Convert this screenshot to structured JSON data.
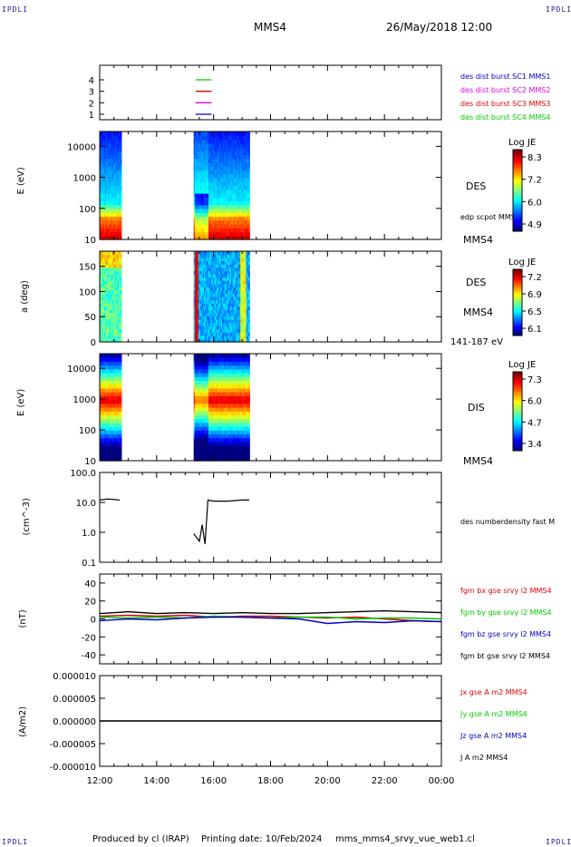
{
  "header": {
    "corner_label": "IPDLI",
    "spacecraft": "MMS4",
    "datetime": "26/May/2018 12:00"
  },
  "footer": {
    "produced_by": "Produced by cl (IRAP)",
    "printing_date": "Printing date: 10/Feb/2024",
    "filename": "mms_mms4_srvy_vue_web1.cl"
  },
  "time_axis": {
    "ticks": [
      "12:00",
      "14:00",
      "16:00",
      "18:00",
      "20:00",
      "22:00",
      "00:00"
    ],
    "start_hour": 12,
    "end_hour": 24
  },
  "colors": {
    "frame": "#000000",
    "blue_text": "#0000c8",
    "magenta_text": "#e000e0",
    "red_text": "#e00000",
    "green_text": "#00cc00"
  },
  "chart_data": [
    {
      "type": "scatter",
      "panel": "burst_availability",
      "yticks": [
        "4",
        "3",
        "2",
        "1"
      ],
      "legend": [
        {
          "label": "des dist burst SC1 MMS1",
          "color": "#0000c8"
        },
        {
          "label": "des dist burst SC2 MMS2",
          "color": "#e000e0"
        },
        {
          "label": "des dist burst SC3 MMS3",
          "color": "#e00000"
        },
        {
          "label": "des dist burst SC4 MMS4",
          "color": "#00cc00"
        }
      ],
      "marks": [
        {
          "level": 4,
          "t_start": 15.5,
          "t_end": 15.8,
          "color": "#00cc00"
        },
        {
          "level": 3,
          "t_start": 15.5,
          "t_end": 15.8,
          "color": "#e00000"
        },
        {
          "level": 2,
          "t_start": 15.5,
          "t_end": 15.8,
          "color": "#e000e0"
        },
        {
          "level": 1,
          "t_start": 15.5,
          "t_end": 15.8,
          "color": "#0000c8"
        }
      ]
    },
    {
      "type": "heatmap",
      "panel": "des_energy",
      "ylabel": "E (eV)",
      "yscale": "log",
      "ylim": [
        10,
        30000
      ],
      "yticks": [
        "10000",
        "1000",
        "100",
        "10"
      ],
      "side_labels": [
        "DES",
        "edp scpot MMS4",
        "MMS4"
      ],
      "colorbar": {
        "title": "Log JE",
        "ticks": [
          "8.3",
          "7.2",
          "6.0",
          "4.9"
        ]
      },
      "data_intervals": [
        [
          12.0,
          12.75
        ],
        [
          15.3,
          17.25
        ]
      ]
    },
    {
      "type": "heatmap",
      "panel": "des_pitch_angle",
      "ylabel": "a (deg)",
      "ylim": [
        0,
        180
      ],
      "yticks": [
        "150",
        "100",
        "50",
        "0"
      ],
      "side_labels": [
        "DES",
        "MMS4",
        "141-187 eV"
      ],
      "colorbar": {
        "title": "Log JE",
        "ticks": [
          "7.2",
          "6.9",
          "6.5",
          "6.1"
        ]
      },
      "data_intervals": [
        [
          12.0,
          12.75
        ],
        [
          15.3,
          17.25
        ]
      ]
    },
    {
      "type": "heatmap",
      "panel": "dis_energy",
      "ylabel": "E (eV)",
      "yscale": "log",
      "ylim": [
        10,
        30000
      ],
      "yticks": [
        "10000",
        "1000",
        "100",
        "10"
      ],
      "side_labels": [
        "DIS",
        "MMS4"
      ],
      "colorbar": {
        "title": "Log JE",
        "ticks": [
          "7.3",
          "6.0",
          "4.7",
          "3.4"
        ]
      },
      "data_intervals": [
        [
          12.0,
          12.75
        ],
        [
          15.3,
          17.25
        ]
      ]
    },
    {
      "type": "line",
      "panel": "density",
      "ylabel": "(cm^-3)",
      "yscale": "log",
      "ylim": [
        0.1,
        100
      ],
      "yticks": [
        "100.0",
        "10.0",
        "1.0",
        "0.1"
      ],
      "series": [
        {
          "name": "des numberdensity fast M",
          "color": "#000000",
          "x": [
            12.0,
            12.3,
            12.7,
            15.3,
            15.5,
            15.6,
            15.7,
            15.8,
            16.0,
            16.5,
            17.0,
            17.25
          ],
          "y": [
            12,
            13,
            12,
            0.9,
            0.5,
            1.8,
            0.4,
            12,
            11,
            11,
            12,
            12
          ]
        }
      ]
    },
    {
      "type": "line",
      "panel": "magnetic_field",
      "ylabel": "(nT)",
      "ylim": [
        -50,
        50
      ],
      "yticks": [
        "40",
        "20",
        "0",
        "-20",
        "-40"
      ],
      "series": [
        {
          "name": "fgm bx gse srvy l2 MMS4",
          "color": "#e00000",
          "x": [
            12,
            13,
            14,
            15,
            16,
            17,
            18,
            19,
            20,
            21,
            22,
            23,
            24
          ],
          "y": [
            3,
            4,
            3,
            4,
            2,
            3,
            3,
            2,
            1,
            2,
            0,
            -2,
            -3
          ]
        },
        {
          "name": "fgm by gse srvy l2 MMS4",
          "color": "#00cc00",
          "x": [
            12,
            13,
            14,
            15,
            16,
            17,
            18,
            19,
            20,
            21,
            22,
            23,
            24
          ],
          "y": [
            2,
            1,
            2,
            1,
            3,
            2,
            1,
            2,
            2,
            0,
            1,
            1,
            0
          ]
        },
        {
          "name": "fgm bz gse srvy l2 MMS4",
          "color": "#0000c8",
          "x": [
            12,
            13,
            14,
            15,
            16,
            17,
            18,
            19,
            20,
            21,
            22,
            23,
            24
          ],
          "y": [
            -2,
            0,
            -1,
            1,
            2,
            2,
            1,
            0,
            -5,
            -3,
            -4,
            -2,
            -3
          ]
        },
        {
          "name": "fgm bt gse srvy l2 MMS4",
          "color": "#000000",
          "x": [
            12,
            13,
            14,
            15,
            16,
            17,
            18,
            19,
            20,
            21,
            22,
            23,
            24
          ],
          "y": [
            6,
            8,
            6,
            7,
            6,
            7,
            6,
            6,
            7,
            8,
            9,
            8,
            7
          ]
        }
      ]
    },
    {
      "type": "line",
      "panel": "current_density",
      "ylabel": "(A/m2)",
      "ylim": [
        -1e-05,
        1e-05
      ],
      "yticks": [
        "0.000010",
        "0.000005",
        "0.000000",
        "-0.000005",
        "-0.000010"
      ],
      "series": [
        {
          "name": "Jx gse A m2 MMS4",
          "color": "#e00000",
          "x": [
            12,
            24
          ],
          "y": [
            0,
            0
          ]
        },
        {
          "name": "Jy gse A m2 MMS4",
          "color": "#00cc00",
          "x": [
            12,
            24
          ],
          "y": [
            0,
            0
          ]
        },
        {
          "name": "Jz gse A m2 MMS4",
          "color": "#0000c8",
          "x": [
            12,
            24
          ],
          "y": [
            0,
            0
          ]
        },
        {
          "name": "J A m2 MMS4",
          "color": "#000000",
          "x": [
            12,
            24
          ],
          "y": [
            0,
            0
          ]
        }
      ]
    }
  ]
}
